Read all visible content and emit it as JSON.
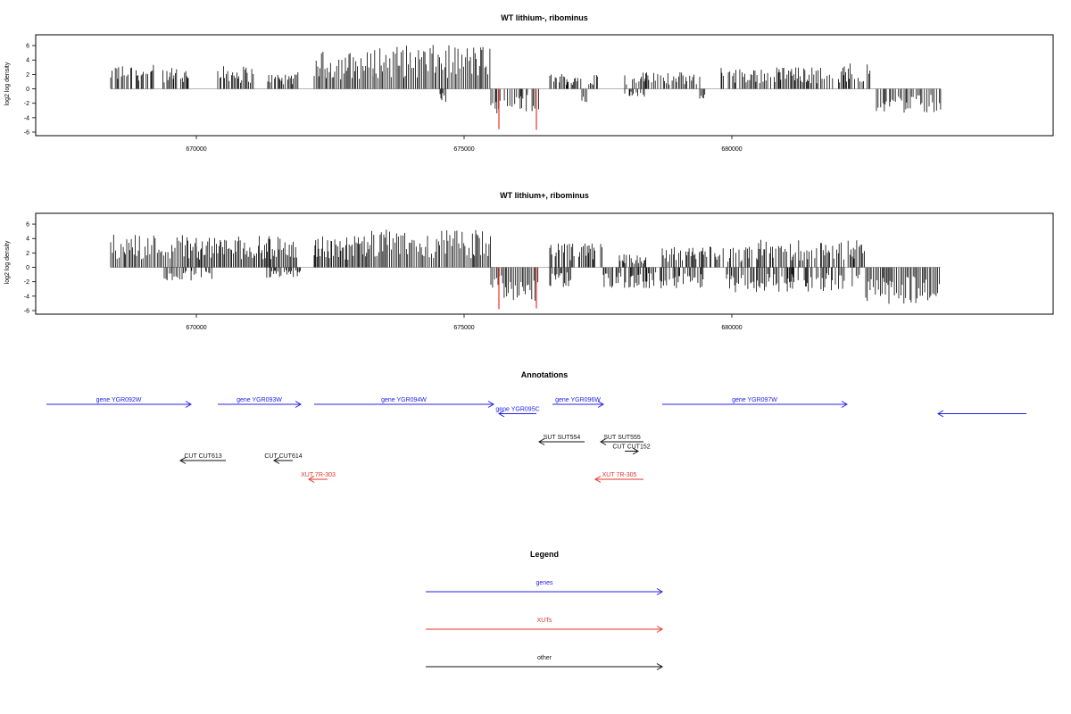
{
  "chart_data": [
    {
      "type": "bar",
      "title": "WT lithium-, ribominus",
      "ylabel": "log2 log density",
      "xlabel": "",
      "xlim": [
        667000,
        686000
      ],
      "ylim": [
        -6,
        7
      ],
      "yticks": [
        "6",
        "4",
        "2",
        "0",
        "-2",
        "-4",
        "-6"
      ],
      "xticks": [
        "670000",
        "675000",
        "680000"
      ],
      "grid": false,
      "highlight_color": "#e8322a",
      "positive_segments": [
        {
          "start": 668400,
          "end": 669200,
          "mean": 2.3
        },
        {
          "start": 669350,
          "end": 669900,
          "mean": 2.0
        },
        {
          "start": 670400,
          "end": 671100,
          "mean": 2.2
        },
        {
          "start": 671300,
          "end": 671900,
          "mean": 1.6
        },
        {
          "start": 672200,
          "end": 673300,
          "mean": 3.6
        },
        {
          "start": 673300,
          "end": 675500,
          "mean": 4.2
        },
        {
          "start": 676600,
          "end": 677500,
          "mean": 1.5
        },
        {
          "start": 678000,
          "end": 679400,
          "mean": 1.6
        },
        {
          "start": 679800,
          "end": 682100,
          "mean": 2.1
        },
        {
          "start": 682100,
          "end": 682600,
          "mean": 2.6
        }
      ],
      "negative_segments": [
        {
          "start": 674550,
          "end": 674700,
          "mean": -1.5
        },
        {
          "start": 675500,
          "end": 676400,
          "mean": -2.4
        },
        {
          "start": 677200,
          "end": 677300,
          "mean": -1.5
        },
        {
          "start": 678000,
          "end": 678400,
          "mean": -0.8
        },
        {
          "start": 679400,
          "end": 679500,
          "mean": -1.2
        },
        {
          "start": 682700,
          "end": 683900,
          "mean": -2.3
        }
      ],
      "highlight_bars": [
        {
          "x": 675650,
          "value": -5.6
        },
        {
          "x": 676350,
          "value": -5.7
        }
      ]
    },
    {
      "type": "bar",
      "title": "WT lithium+, ribominus",
      "ylabel": "log2 log density",
      "xlabel": "",
      "xlim": [
        667000,
        686000
      ],
      "ylim": [
        -6,
        7
      ],
      "yticks": [
        "6",
        "4",
        "2",
        "0",
        "-2",
        "-4",
        "-6"
      ],
      "xticks": [
        "670000",
        "675000",
        "680000"
      ],
      "grid": false,
      "highlight_color": "#e8322a",
      "positive_segments": [
        {
          "start": 668400,
          "end": 670000,
          "mean": 3.2
        },
        {
          "start": 670000,
          "end": 671900,
          "mean": 3.0
        },
        {
          "start": 672200,
          "end": 673200,
          "mean": 3.0
        },
        {
          "start": 673200,
          "end": 675500,
          "mean": 3.6
        },
        {
          "start": 676600,
          "end": 677600,
          "mean": 2.3
        },
        {
          "start": 677900,
          "end": 678400,
          "mean": 1.3
        },
        {
          "start": 678700,
          "end": 680500,
          "mean": 2.0
        },
        {
          "start": 680500,
          "end": 682500,
          "mean": 2.7
        }
      ],
      "negative_segments": [
        {
          "start": 669400,
          "end": 670300,
          "mean": -1.3
        },
        {
          "start": 671300,
          "end": 672000,
          "mean": -1.0
        },
        {
          "start": 675500,
          "end": 676400,
          "mean": -3.2
        },
        {
          "start": 676600,
          "end": 677000,
          "mean": -2.0
        },
        {
          "start": 677600,
          "end": 679500,
          "mean": -2.0
        },
        {
          "start": 679900,
          "end": 682400,
          "mean": -2.4
        },
        {
          "start": 682500,
          "end": 683900,
          "mean": -3.5
        }
      ],
      "highlight_bars": [
        {
          "x": 675650,
          "value": -5.8
        },
        {
          "x": 676350,
          "value": -5.7
        }
      ]
    }
  ],
  "annotations": {
    "title": "Annotations",
    "features": [
      {
        "label": "gene YGR092W",
        "start": 667200,
        "end": 669900,
        "strand": "+",
        "type": "gene",
        "row": 0
      },
      {
        "label": "gene YGR093W",
        "start": 670400,
        "end": 671950,
        "strand": "+",
        "type": "gene",
        "row": 0
      },
      {
        "label": "gene YGR094W",
        "start": 672200,
        "end": 675550,
        "strand": "+",
        "type": "gene",
        "row": 0
      },
      {
        "label": "gene YGR095C",
        "start": 675650,
        "end": 676350,
        "strand": "-",
        "type": "gene",
        "row": 1
      },
      {
        "label": "gene YGR096W",
        "start": 676650,
        "end": 677600,
        "strand": "+",
        "type": "gene",
        "row": 0
      },
      {
        "label": "gene YGR097W",
        "start": 678700,
        "end": 682150,
        "strand": "+",
        "type": "gene",
        "row": 0
      },
      {
        "label": "",
        "start": 683850,
        "end": 685500,
        "strand": "-",
        "type": "gene",
        "row": 1
      },
      {
        "label": "SUT SUT554",
        "start": 676400,
        "end": 677250,
        "strand": "-",
        "type": "other",
        "row": 4
      },
      {
        "label": "SUT SUT555",
        "start": 677550,
        "end": 678350,
        "strand": "-",
        "type": "other",
        "row": 4
      },
      {
        "label": "CUT CUT152",
        "start": 678000,
        "end": 678250,
        "strand": "+",
        "type": "other",
        "row": 5
      },
      {
        "label": "CUT CUT613",
        "start": 669700,
        "end": 670550,
        "strand": "-",
        "type": "other",
        "row": 6
      },
      {
        "label": "CUT CUT614",
        "start": 671450,
        "end": 671800,
        "strand": "-",
        "type": "other",
        "row": 6
      },
      {
        "label": "XUT 7R-303",
        "start": 672100,
        "end": 672450,
        "strand": "-",
        "type": "xut",
        "row": 8
      },
      {
        "label": "XUT 7R-305",
        "start": 677450,
        "end": 678350,
        "strand": "-",
        "type": "xut",
        "row": 8
      }
    ]
  },
  "legend": {
    "title": "Legend",
    "items": [
      {
        "label": "genes",
        "color": "#2323e8"
      },
      {
        "label": "XUTs",
        "color": "#e8322a"
      },
      {
        "label": "other",
        "color": "#111111"
      }
    ]
  },
  "colors": {
    "gene": "#2323e8",
    "xut": "#e8322a",
    "other": "#111111"
  }
}
